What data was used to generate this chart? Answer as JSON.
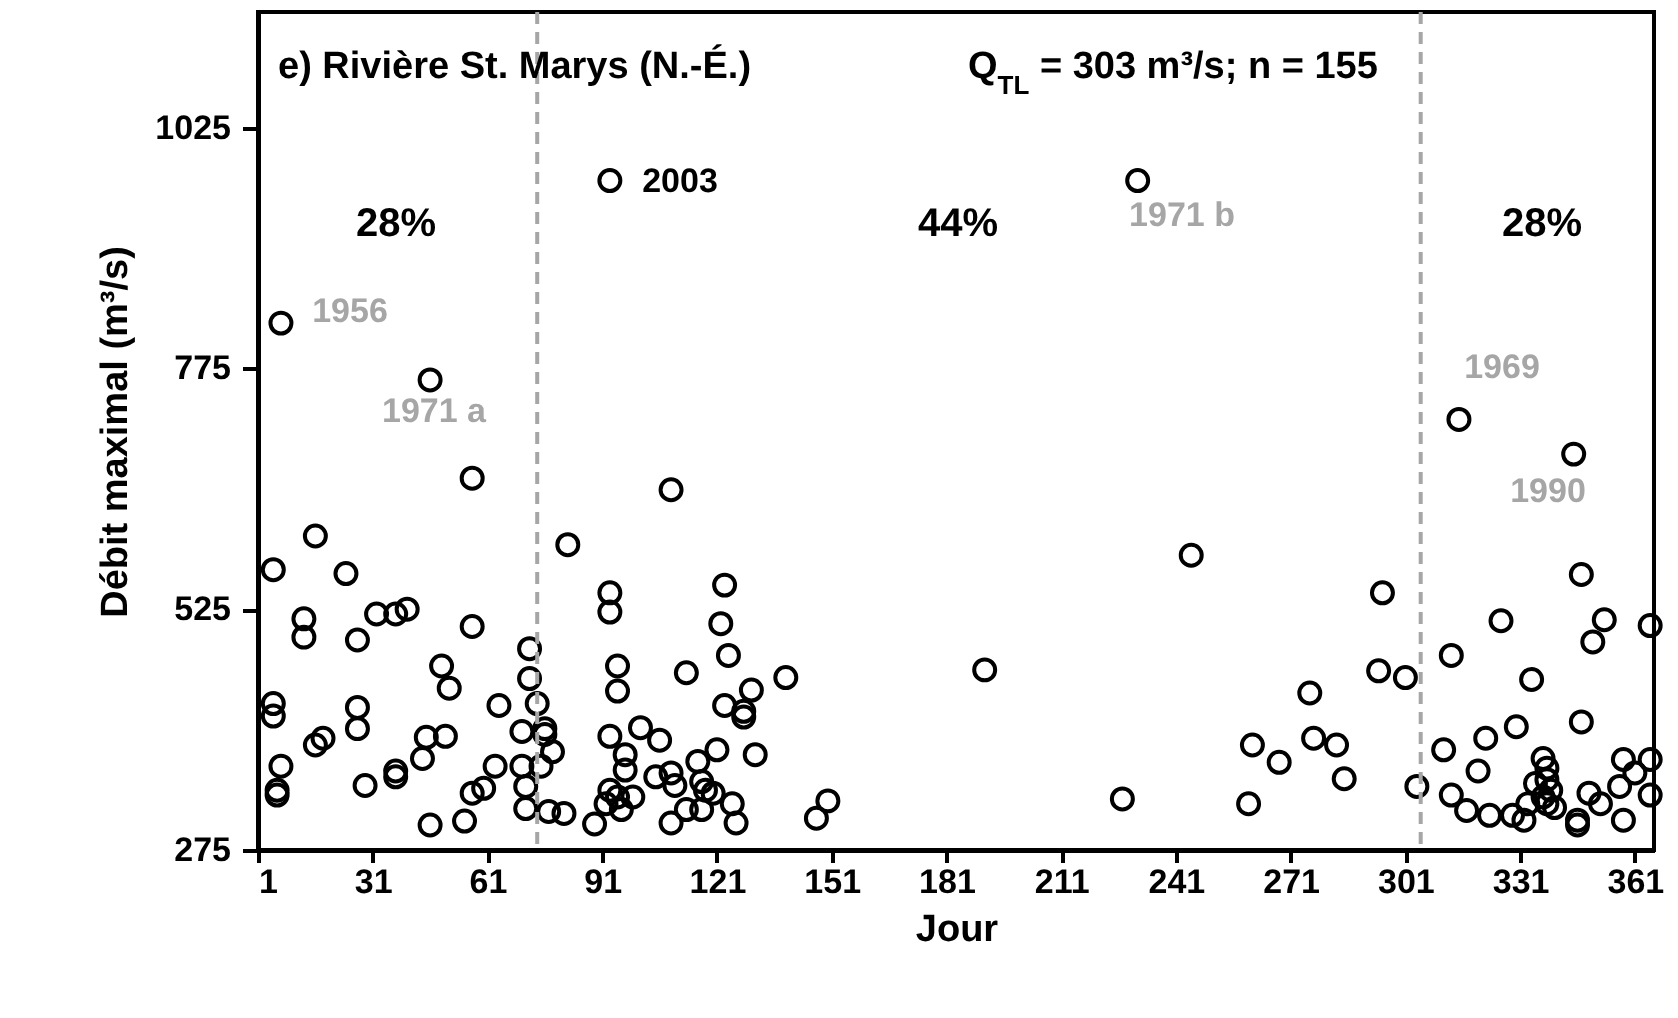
{
  "chart_data": {
    "type": "scatter",
    "title": "e) Rivière St. Marys (N.-É.)",
    "subtitle": "Q$_{TL}$ = 303 m³/s; n = 155",
    "xlabel": "Jour",
    "ylabel": "Débit maximal (m³/s)",
    "xlim": [
      1,
      366
    ],
    "xticks": [
      1,
      31,
      61,
      91,
      121,
      151,
      181,
      211,
      241,
      271,
      301,
      331,
      361
    ],
    "ylim": [
      275,
      1145
    ],
    "yticks": [
      275,
      525,
      775,
      1025
    ],
    "grid": false,
    "marker": "circle",
    "series": [
      {
        "color": "#000000",
        "x": [
          7,
          46,
          57,
          16,
          82,
          5,
          24,
          13,
          13,
          32,
          37,
          40,
          57,
          27,
          49,
          51,
          72,
          72,
          5,
          5,
          27,
          27,
          16,
          18,
          45,
          50,
          44,
          64,
          70,
          74,
          76,
          76,
          78,
          70,
          75,
          63,
          7,
          6,
          6,
          37,
          37,
          29,
          60,
          57,
          71,
          71,
          55,
          46,
          77,
          81,
          109,
          93,
          93,
          123,
          122,
          124,
          95,
          95,
          113,
          139,
          130,
          123,
          128,
          128,
          101,
          93,
          106,
          97,
          97,
          121,
          131,
          116,
          105,
          109,
          110,
          117,
          118,
          120,
          93,
          95,
          99,
          96,
          92,
          89,
          109,
          113,
          117,
          125,
          126,
          150,
          147,
          191,
          315,
          345,
          245,
          347,
          295,
          326,
          353,
          365,
          350,
          313,
          294,
          301,
          334,
          276,
          330,
          347,
          261,
          268,
          277,
          283,
          322,
          311,
          320,
          285,
          227,
          260,
          304,
          313,
          317,
          323,
          329,
          332,
          337,
          338,
          338,
          335,
          339,
          337,
          338,
          340,
          333,
          346,
          346,
          349,
          352,
          358,
          358,
          357,
          361,
          365,
          365,
          93,
          231
        ],
        "values": [
          822,
          763,
          661,
          601,
          592,
          566,
          562,
          515,
          496,
          520,
          520,
          525,
          507,
          493,
          466,
          443,
          484,
          453,
          427,
          414,
          423,
          401,
          384,
          391,
          392,
          393,
          370,
          425,
          398,
          427,
          401,
          395,
          377,
          362,
          362,
          362,
          362,
          337,
          332,
          357,
          351,
          342,
          339,
          334,
          341,
          318,
          305,
          301,
          315,
          313,
          649,
          542,
          522,
          550,
          510,
          477,
          466,
          440,
          459,
          454,
          441,
          425,
          419,
          413,
          402,
          393,
          389,
          374,
          358,
          379,
          374,
          367,
          351,
          355,
          342,
          346,
          337,
          334,
          337,
          330,
          330,
          317,
          323,
          302,
          303,
          317,
          317,
          323,
          303,
          326,
          308,
          462,
          722,
          686,
          581,
          561,
          542,
          513,
          514,
          508,
          491,
          477,
          461,
          454,
          452,
          438,
          403,
          408,
          384,
          366,
          391,
          384,
          391,
          379,
          357,
          349,
          328,
          323,
          341,
          332,
          316,
          311,
          311,
          306,
          370,
          360,
          348,
          344,
          337,
          330,
          323,
          319,
          323,
          306,
          301,
          334,
          323,
          369,
          306,
          341,
          355,
          369,
          332,
          970,
          970
        ]
      }
    ],
    "ref_lines": [
      {
        "axis": "x",
        "value": 74,
        "color": "#a6a6a6",
        "line_style": "dashed"
      },
      {
        "axis": "x",
        "value": 305,
        "color": "#a6a6a6",
        "line_style": "dashed"
      }
    ],
    "annotations": [
      "28%",
      "44%",
      "28%",
      "1956",
      "1971 a",
      "2003",
      "1971 b",
      "1969",
      "1990"
    ]
  }
}
